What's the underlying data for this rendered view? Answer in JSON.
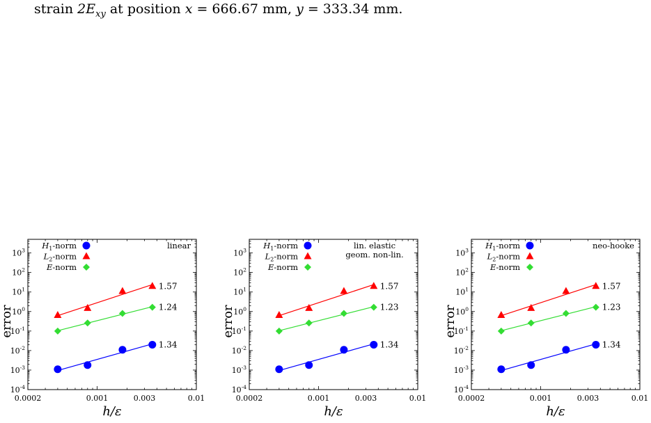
{
  "caption": {
    "prefix": "strain ",
    "symbol": "2E",
    "symbol_sub": "xy",
    "middle": " at position ",
    "x_var": "x",
    "x_val": " = 666.67 mm, ",
    "y_var": "y",
    "y_val": " = 333.34 mm."
  },
  "chart_data": [
    {
      "type": "scatter",
      "title": "",
      "annotation": "linear",
      "xlabel": "h/ε",
      "ylabel": "error",
      "xscale": "log",
      "yscale": "log",
      "xlim": [
        0.0002,
        0.01
      ],
      "ylim": [
        0.0001,
        5000
      ],
      "xticks": [
        {
          "v": 0.0002,
          "label": "0.0002"
        },
        {
          "v": 0.001,
          "label": "0.001"
        },
        {
          "v": 0.003,
          "label": "0.003"
        },
        {
          "v": 0.01,
          "label": "0.01"
        }
      ],
      "yticks": [
        {
          "v": 0.0001,
          "exp": "-4"
        },
        {
          "v": 0.001,
          "exp": "-3"
        },
        {
          "v": 0.01,
          "exp": "-2"
        },
        {
          "v": 0.1,
          "exp": "-1"
        },
        {
          "v": 1,
          "exp": "0"
        },
        {
          "v": 10,
          "exp": "1"
        },
        {
          "v": 100,
          "exp": "2"
        },
        {
          "v": 1000,
          "exp": "3"
        }
      ],
      "legend_position": "top-left",
      "series": [
        {
          "name": "H1-norm",
          "label_main": "H",
          "label_sub": "1",
          "label_rest": "-norm",
          "color": "#0000ff",
          "marker": "circle",
          "x": [
            0.0004,
            0.0008,
            0.0018,
            0.0036
          ],
          "y": [
            0.0011,
            0.0018,
            0.011,
            0.02
          ],
          "slope": "1.34"
        },
        {
          "name": "L2-norm",
          "label_main": "L",
          "label_sub": "2",
          "label_rest": "-norm",
          "color": "#ff0000",
          "marker": "triangle",
          "x": [
            0.0004,
            0.0008,
            0.0018,
            0.0036
          ],
          "y": [
            0.65,
            1.5,
            11,
            20
          ],
          "slope": "1.57"
        },
        {
          "name": "E-norm",
          "label_main": "E",
          "label_sub": "",
          "label_rest": "-norm",
          "color": "#33dd33",
          "marker": "diamond",
          "x": [
            0.0004,
            0.0008,
            0.0018,
            0.0036
          ],
          "y": [
            0.1,
            0.26,
            0.8,
            1.65
          ],
          "slope": "1.24"
        }
      ]
    },
    {
      "type": "scatter",
      "title": "",
      "annotation": "lin. elastic|geom. non-lin.",
      "xlabel": "h/ε",
      "ylabel": "error",
      "xscale": "log",
      "yscale": "log",
      "xlim": [
        0.0002,
        0.01
      ],
      "ylim": [
        0.0001,
        5000
      ],
      "xticks": [
        {
          "v": 0.0002,
          "label": "0.0002"
        },
        {
          "v": 0.001,
          "label": "0.001"
        },
        {
          "v": 0.003,
          "label": "0.003"
        },
        {
          "v": 0.01,
          "label": "0.01"
        }
      ],
      "yticks": [
        {
          "v": 0.0001,
          "exp": "-4"
        },
        {
          "v": 0.001,
          "exp": "-3"
        },
        {
          "v": 0.01,
          "exp": "-2"
        },
        {
          "v": 0.1,
          "exp": "-1"
        },
        {
          "v": 1,
          "exp": "0"
        },
        {
          "v": 10,
          "exp": "1"
        },
        {
          "v": 100,
          "exp": "2"
        },
        {
          "v": 1000,
          "exp": "3"
        }
      ],
      "legend_position": "top-left",
      "series": [
        {
          "name": "H1-norm",
          "label_main": "H",
          "label_sub": "1",
          "label_rest": "-norm",
          "color": "#0000ff",
          "marker": "circle",
          "x": [
            0.0004,
            0.0008,
            0.0018,
            0.0036
          ],
          "y": [
            0.0011,
            0.0018,
            0.011,
            0.02
          ],
          "slope": "1.34"
        },
        {
          "name": "L2-norm",
          "label_main": "L",
          "label_sub": "2",
          "label_rest": "-norm",
          "color": "#ff0000",
          "marker": "triangle",
          "x": [
            0.0004,
            0.0008,
            0.0018,
            0.0036
          ],
          "y": [
            0.65,
            1.5,
            11,
            20
          ],
          "slope": "1.57"
        },
        {
          "name": "E-norm",
          "label_main": "E",
          "label_sub": "",
          "label_rest": "-norm",
          "color": "#33dd33",
          "marker": "diamond",
          "x": [
            0.0004,
            0.0008,
            0.0018,
            0.0036
          ],
          "y": [
            0.1,
            0.26,
            0.8,
            1.65
          ],
          "slope": "1.23"
        }
      ]
    },
    {
      "type": "scatter",
      "title": "",
      "annotation": "neo-hooke",
      "xlabel": "h/ε",
      "ylabel": "error",
      "xscale": "log",
      "yscale": "log",
      "xlim": [
        0.0002,
        0.01
      ],
      "ylim": [
        0.0001,
        5000
      ],
      "xticks": [
        {
          "v": 0.0002,
          "label": "0.0002"
        },
        {
          "v": 0.001,
          "label": "0.001"
        },
        {
          "v": 0.003,
          "label": "0.003"
        },
        {
          "v": 0.01,
          "label": "0.01"
        }
      ],
      "yticks": [
        {
          "v": 0.0001,
          "exp": "-4"
        },
        {
          "v": 0.001,
          "exp": "-3"
        },
        {
          "v": 0.01,
          "exp": "-2"
        },
        {
          "v": 0.1,
          "exp": "-1"
        },
        {
          "v": 1,
          "exp": "0"
        },
        {
          "v": 10,
          "exp": "1"
        },
        {
          "v": 100,
          "exp": "2"
        },
        {
          "v": 1000,
          "exp": "3"
        }
      ],
      "legend_position": "top-left",
      "series": [
        {
          "name": "H1-norm",
          "label_main": "H",
          "label_sub": "1",
          "label_rest": "-norm",
          "color": "#0000ff",
          "marker": "circle",
          "x": [
            0.0004,
            0.0008,
            0.0018,
            0.0036
          ],
          "y": [
            0.0011,
            0.0018,
            0.011,
            0.02
          ],
          "slope": "1.34"
        },
        {
          "name": "L2-norm",
          "label_main": "L",
          "label_sub": "2",
          "label_rest": "-norm",
          "color": "#ff0000",
          "marker": "triangle",
          "x": [
            0.0004,
            0.0008,
            0.0018,
            0.0036
          ],
          "y": [
            0.65,
            1.5,
            11,
            20
          ],
          "slope": "1.57"
        },
        {
          "name": "E-norm",
          "label_main": "E",
          "label_sub": "",
          "label_rest": "-norm",
          "color": "#33dd33",
          "marker": "diamond",
          "x": [
            0.0004,
            0.0008,
            0.0018,
            0.0036
          ],
          "y": [
            0.1,
            0.26,
            0.8,
            1.65
          ],
          "slope": "1.23"
        }
      ]
    }
  ]
}
